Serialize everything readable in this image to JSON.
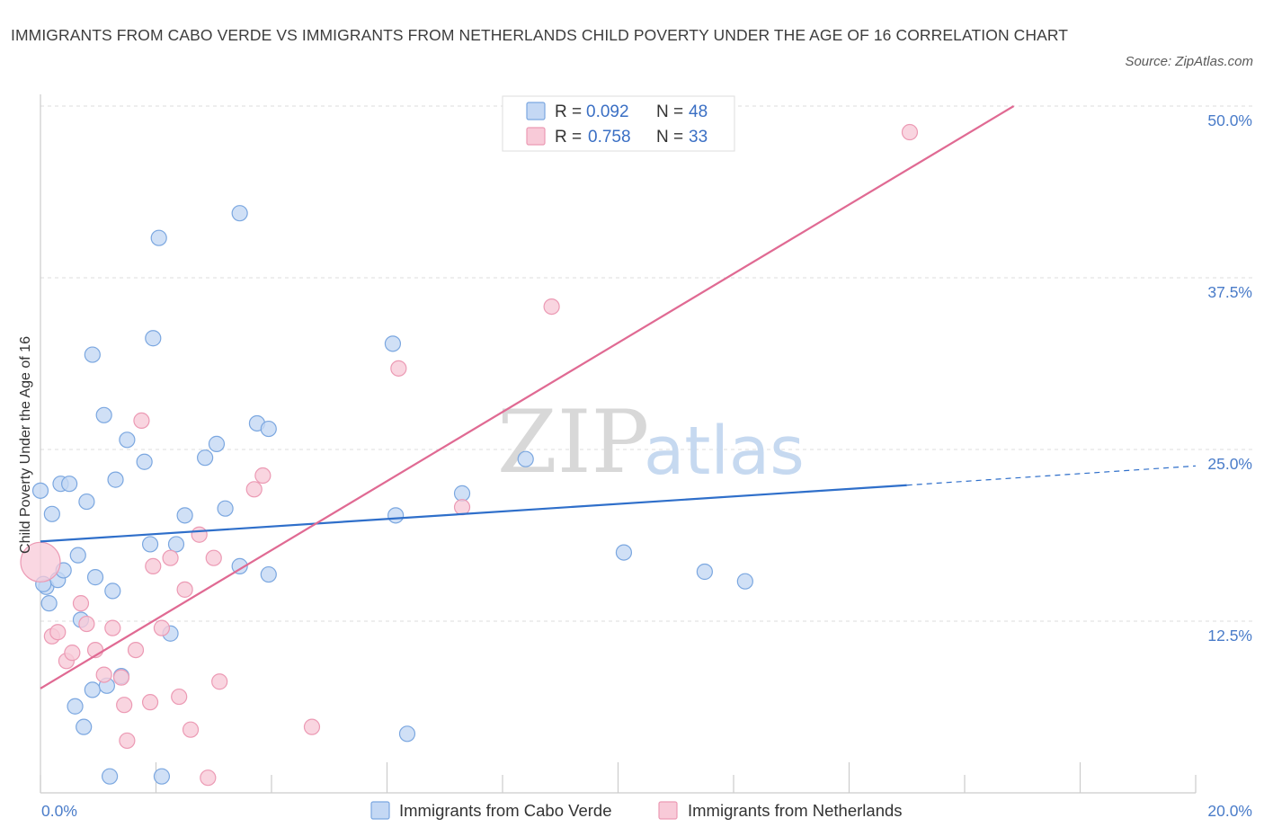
{
  "title": "IMMIGRANTS FROM CABO VERDE VS IMMIGRANTS FROM NETHERLANDS CHILD POVERTY UNDER THE AGE OF 16 CORRELATION CHART",
  "source": "Source: ZipAtlas.com",
  "watermark": {
    "zip": "ZIP",
    "atlas": "atlas"
  },
  "chart_data": {
    "type": "scatter",
    "xlabel": "",
    "ylabel": "Child Poverty Under the Age of 16",
    "xlim": [
      0,
      20
    ],
    "ylim": [
      0,
      50
    ],
    "x_tick_labels": {
      "min": "0.0%",
      "max": "20.0%"
    },
    "y_ticks": [
      {
        "value": 12.5,
        "label": "12.5%"
      },
      {
        "value": 25,
        "label": "25.0%"
      },
      {
        "value": 37.5,
        "label": "37.5%"
      },
      {
        "value": 50,
        "label": "50.0%"
      }
    ],
    "legend": {
      "placement": "top-center",
      "entries": [
        {
          "r_label": "R =",
          "r_value": "0.092",
          "n_label": "N =",
          "n_value": "48"
        },
        {
          "r_label": "R =",
          "r_value": "0.758",
          "n_label": "N =",
          "n_value": "33"
        }
      ]
    },
    "series": [
      {
        "name": "Immigrants from Cabo Verde",
        "color": "#7ba7e0",
        "fill": "#c4d8f4",
        "line_color": "#2f6fca",
        "trend": {
          "x0": 0,
          "y0": 18.3,
          "x1": 15,
          "y1": 22.4,
          "dashed_to": 20,
          "dashed_y": 23.8
        },
        "points": [
          [
            0.0,
            22.0
          ],
          [
            0.1,
            15.0
          ],
          [
            0.15,
            13.8
          ],
          [
            0.2,
            20.3
          ],
          [
            0.3,
            15.5
          ],
          [
            0.35,
            22.5
          ],
          [
            0.4,
            16.2
          ],
          [
            0.5,
            22.5
          ],
          [
            0.6,
            6.3
          ],
          [
            0.65,
            17.3
          ],
          [
            0.7,
            12.6
          ],
          [
            0.75,
            4.8
          ],
          [
            0.8,
            21.2
          ],
          [
            0.9,
            7.5
          ],
          [
            0.9,
            31.9
          ],
          [
            0.95,
            15.7
          ],
          [
            1.1,
            27.5
          ],
          [
            1.15,
            7.8
          ],
          [
            1.2,
            1.2
          ],
          [
            1.25,
            14.7
          ],
          [
            1.3,
            22.8
          ],
          [
            1.4,
            8.5
          ],
          [
            1.5,
            25.7
          ],
          [
            1.8,
            24.1
          ],
          [
            1.9,
            18.1
          ],
          [
            1.95,
            33.1
          ],
          [
            2.05,
            40.4
          ],
          [
            2.1,
            1.2
          ],
          [
            2.25,
            11.6
          ],
          [
            2.35,
            18.1
          ],
          [
            2.5,
            20.2
          ],
          [
            2.85,
            24.4
          ],
          [
            3.05,
            25.4
          ],
          [
            3.2,
            20.7
          ],
          [
            3.45,
            16.5
          ],
          [
            3.45,
            42.2
          ],
          [
            3.75,
            26.9
          ],
          [
            3.95,
            26.5
          ],
          [
            3.95,
            15.9
          ],
          [
            6.1,
            32.7
          ],
          [
            6.15,
            20.2
          ],
          [
            6.35,
            4.3
          ],
          [
            7.3,
            21.8
          ],
          [
            8.4,
            24.3
          ],
          [
            10.1,
            17.5
          ],
          [
            11.5,
            16.1
          ],
          [
            12.2,
            15.4
          ],
          [
            0.05,
            15.2
          ]
        ]
      },
      {
        "name": "Immigrants from Netherlands",
        "color": "#ec9ab4",
        "fill": "#f8cad8",
        "line_color": "#e06a93",
        "trend": {
          "x0": 0,
          "y0": 7.6,
          "x1": 16.85,
          "y1": 50.0
        },
        "points": [
          [
            0.0,
            16.8
          ],
          [
            0.2,
            11.4
          ],
          [
            0.3,
            11.7
          ],
          [
            0.45,
            9.6
          ],
          [
            0.55,
            10.2
          ],
          [
            0.7,
            13.8
          ],
          [
            0.8,
            12.3
          ],
          [
            0.95,
            10.4
          ],
          [
            1.1,
            8.6
          ],
          [
            1.25,
            12.0
          ],
          [
            1.4,
            8.4
          ],
          [
            1.45,
            6.4
          ],
          [
            1.5,
            3.8
          ],
          [
            1.65,
            10.4
          ],
          [
            1.75,
            27.1
          ],
          [
            1.9,
            6.6
          ],
          [
            1.95,
            16.5
          ],
          [
            2.1,
            12.0
          ],
          [
            2.25,
            17.1
          ],
          [
            2.4,
            7.0
          ],
          [
            2.5,
            14.8
          ],
          [
            2.6,
            4.6
          ],
          [
            2.75,
            18.8
          ],
          [
            2.9,
            1.1
          ],
          [
            3.0,
            17.1
          ],
          [
            3.1,
            8.1
          ],
          [
            3.7,
            22.1
          ],
          [
            3.85,
            23.1
          ],
          [
            4.7,
            4.8
          ],
          [
            6.2,
            30.9
          ],
          [
            7.3,
            20.8
          ],
          [
            8.85,
            35.4
          ],
          [
            15.05,
            48.1
          ]
        ]
      }
    ]
  }
}
